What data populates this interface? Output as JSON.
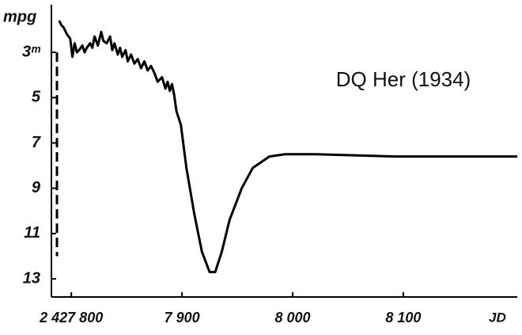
{
  "chart_data": {
    "type": "line",
    "annotation": "DQ Her (1934)",
    "ylabel": "mpg",
    "xlabel": "JD",
    "xlim": [
      2427782,
      2428203
    ],
    "ylim": [
      13.8,
      0.9
    ],
    "xticks": [
      {
        "value": 2427800,
        "label": "2 427 800"
      },
      {
        "value": 2427900,
        "label": "7 900"
      },
      {
        "value": 2428000,
        "label": "8 000"
      },
      {
        "value": 2428100,
        "label": "8 100"
      }
    ],
    "yticks": [
      {
        "value": 3,
        "label": "3ᵐ"
      },
      5,
      7,
      9,
      11,
      13
    ],
    "series": [
      {
        "color": "#000000",
        "dashed": false,
        "x": [
          2427789,
          2427791,
          2427793,
          2427796,
          2427799,
          2427801,
          2427803,
          2427805,
          2427807,
          2427810,
          2427812,
          2427814,
          2427817,
          2427819,
          2427821,
          2427824,
          2427827,
          2427829,
          2427832,
          2427835,
          2427837,
          2427839,
          2427842,
          2427844,
          2427846,
          2427849,
          2427851,
          2427854,
          2427857,
          2427860,
          2427863,
          2427866,
          2427869,
          2427872,
          2427875,
          2427878,
          2427882,
          2427885,
          2427887,
          2427889,
          2427891,
          2427893,
          2427895,
          2427899,
          2427904,
          2427911,
          2427918,
          2427925,
          2427930,
          2427936,
          2427943,
          2427954,
          2427964,
          2427979,
          2427993,
          2428021,
          2428093,
          2428203
        ],
        "values": [
          1.6,
          1.8,
          1.9,
          2.2,
          2.4,
          3.2,
          2.6,
          3.0,
          2.9,
          2.7,
          3.0,
          2.8,
          2.6,
          2.8,
          2.3,
          2.7,
          2.1,
          2.5,
          2.6,
          2.3,
          2.9,
          2.6,
          3.1,
          2.8,
          3.2,
          2.9,
          3.4,
          3.1,
          3.5,
          3.3,
          3.7,
          3.4,
          3.8,
          3.6,
          3.9,
          4.3,
          4.1,
          4.6,
          4.3,
          4.7,
          4.4,
          4.9,
          5.6,
          6.2,
          8.1,
          10.1,
          11.8,
          12.7,
          12.7,
          11.8,
          10.4,
          9.0,
          8.1,
          7.6,
          7.5,
          7.5,
          7.6,
          7.6
        ]
      },
      {
        "color": "#000000",
        "dashed": true,
        "x": [
          2427787,
          2427787
        ],
        "values": [
          3,
          12
        ]
      }
    ]
  }
}
